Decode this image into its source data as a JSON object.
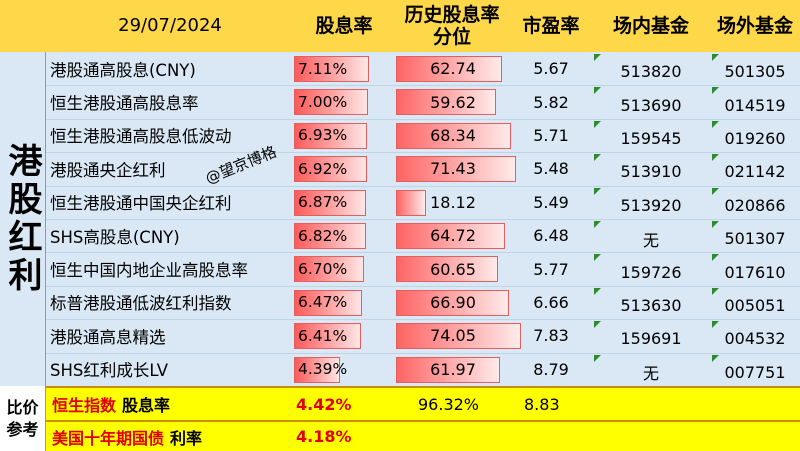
{
  "header": {
    "date": "29/07/2024",
    "col_yield": "股息率",
    "col_percentile": "历史股息率\n分位",
    "col_pe": "市盈率",
    "col_onexchange": "场内基金",
    "col_offexchange": "场外基金"
  },
  "group_label": "港股红利",
  "watermark": "@望京博格",
  "colors": {
    "header_bg": "#ffd84a",
    "body_bg": "#d9e8f4",
    "bar_red": "#ff5a5a",
    "ref_bg": "#ffff00",
    "accent_red": "#e00000",
    "marker_green": "#2e8b2e"
  },
  "rows": [
    {
      "name": "港股通高股息(CNY)",
      "yield": "7.11%",
      "yield_value": 7.11,
      "percentile": "62.74",
      "percentile_value": 62.74,
      "pe": "5.67",
      "fund_on": "513820",
      "fund_off": "501305"
    },
    {
      "name": "恒生港股通高股息率",
      "yield": "7.00%",
      "yield_value": 7.0,
      "percentile": "59.62",
      "percentile_value": 59.62,
      "pe": "5.82",
      "fund_on": "513690",
      "fund_off": "014519"
    },
    {
      "name": "恒生港股通高股息低波动",
      "yield": "6.93%",
      "yield_value": 6.93,
      "percentile": "68.34",
      "percentile_value": 68.34,
      "pe": "5.71",
      "fund_on": "159545",
      "fund_off": "019260"
    },
    {
      "name": "港股通央企红利",
      "yield": "6.92%",
      "yield_value": 6.92,
      "percentile": "71.43",
      "percentile_value": 71.43,
      "pe": "5.48",
      "fund_on": "513910",
      "fund_off": "021142"
    },
    {
      "name": "恒生港股通中国央企红利",
      "yield": "6.87%",
      "yield_value": 6.87,
      "percentile": "18.12",
      "percentile_value": 18.12,
      "pe": "5.49",
      "fund_on": "513920",
      "fund_off": "020866"
    },
    {
      "name": "SHS高股息(CNY)",
      "yield": "6.82%",
      "yield_value": 6.82,
      "percentile": "64.72",
      "percentile_value": 64.72,
      "pe": "6.48",
      "fund_on": "无",
      "fund_off": "501307"
    },
    {
      "name": "恒生中国内地企业高股息率",
      "yield": "6.70%",
      "yield_value": 6.7,
      "percentile": "60.65",
      "percentile_value": 60.65,
      "pe": "5.77",
      "fund_on": "159726",
      "fund_off": "017610"
    },
    {
      "name": "标普港股通低波红利指数",
      "yield": "6.47%",
      "yield_value": 6.47,
      "percentile": "66.90",
      "percentile_value": 66.9,
      "pe": "6.66",
      "fund_on": "513630",
      "fund_off": "005051"
    },
    {
      "name": "港股通高息精选",
      "yield": "6.41%",
      "yield_value": 6.41,
      "percentile": "74.05",
      "percentile_value": 74.05,
      "pe": "7.83",
      "fund_on": "159691",
      "fund_off": "004532"
    },
    {
      "name": "SHS红利成长LV",
      "yield": "4.39%",
      "yield_value": 4.39,
      "percentile": "61.97",
      "percentile_value": 61.97,
      "pe": "8.79",
      "fund_on": "无",
      "fund_off": "007751"
    }
  ],
  "reference": {
    "label": "比价\n参考",
    "hsi_name": "恒生指数",
    "hsi_suffix": "股息率",
    "hsi_yield": "4.42%",
    "hsi_percentile": "96.32%",
    "hsi_pe": "8.83",
    "bond_name": "美国十年期国债",
    "bond_suffix": "利率",
    "bond_rate": "4.18%"
  }
}
